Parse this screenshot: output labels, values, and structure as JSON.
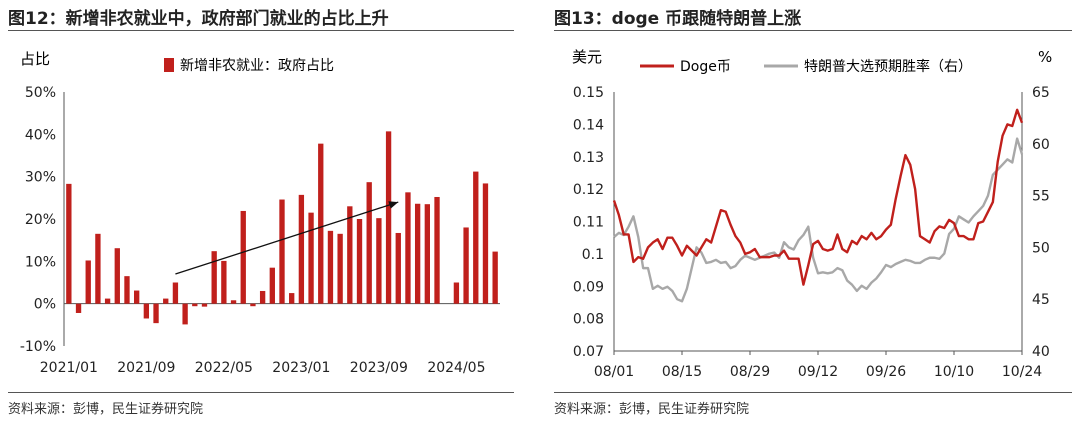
{
  "left": {
    "title": "图12：新增非农就业中，政府部门就业的占比上升",
    "source": "资料来源：彭博，民生证券研究院",
    "chart_data": {
      "type": "bar",
      "ylabel": "占比",
      "legend": "新增非农就业：政府占比",
      "ylim": [
        -10,
        50
      ],
      "yticks": [
        "50%",
        "40%",
        "30%",
        "20%",
        "10%",
        "0%",
        "-10%"
      ],
      "ytick_values": [
        50,
        40,
        30,
        20,
        10,
        0,
        -10
      ],
      "xticks": [
        "2021/01",
        "2021/09",
        "2022/05",
        "2023/01",
        "2023/09",
        "2024/05"
      ],
      "xtick_index": [
        0,
        8,
        16,
        24,
        32,
        40
      ],
      "colors": {
        "bar": "#C0201C",
        "axis": "#555555"
      },
      "values": [
        28.3,
        -2.2,
        10.2,
        16.5,
        1.2,
        13.1,
        6.5,
        3.1,
        -3.5,
        -4.6,
        1.2,
        5.0,
        -4.9,
        -0.6,
        -0.7,
        12.4,
        10.1,
        0.8,
        21.9,
        -0.6,
        3.0,
        8.5,
        24.6,
        2.5,
        25.7,
        21.5,
        37.8,
        17.2,
        16.5,
        23.0,
        20.0,
        28.7,
        20.2,
        40.7,
        16.7,
        26.3,
        23.6,
        23.5,
        25.2,
        null,
        5.0,
        18.0,
        31.2,
        28.4,
        12.3
      ],
      "trend_arrow": {
        "from": [
          11,
          7
        ],
        "to": [
          34,
          24
        ]
      }
    }
  },
  "right": {
    "title": "图13：doge 币跟随特朗普上涨",
    "source": "资料来源：彭博，民生证券研究院",
    "chart_data": {
      "type": "line",
      "ylabel_left": "美元",
      "ylabel_right": "%",
      "ylim_left": [
        0.07,
        0.15
      ],
      "ylim_right": [
        40,
        65
      ],
      "yticks_left": [
        "0.15",
        "0.14",
        "0.13",
        "0.12",
        "0.11",
        "0.1",
        "0.09",
        "0.08",
        "0.07"
      ],
      "ytick_values_left": [
        0.15,
        0.14,
        0.13,
        0.12,
        0.11,
        0.1,
        0.09,
        0.08,
        0.07
      ],
      "yticks_right": [
        "65",
        "60",
        "55",
        "50",
        "45",
        "40"
      ],
      "ytick_values_right": [
        65,
        60,
        55,
        50,
        45,
        40
      ],
      "xticks": [
        "08/01",
        "08/15",
        "08/29",
        "09/12",
        "09/26",
        "10/10",
        "10/24"
      ],
      "xtick_days": [
        0,
        14,
        28,
        42,
        56,
        70,
        84
      ],
      "series": [
        {
          "name": "Doge币",
          "color": "#C0201C",
          "x": [
            0,
            1,
            2,
            3,
            4,
            5,
            6,
            7,
            8,
            9,
            10,
            11,
            12,
            13,
            14,
            15,
            16,
            17,
            18,
            19,
            20,
            21,
            22,
            23,
            24,
            25,
            26,
            27,
            28,
            29,
            30,
            31,
            32,
            33,
            34,
            35,
            36,
            37,
            38,
            39,
            40,
            41,
            42,
            43,
            44,
            45,
            46,
            47,
            48,
            49,
            50,
            51,
            52,
            53,
            54,
            55,
            56,
            57,
            58,
            59,
            60,
            61,
            62,
            63,
            64,
            65,
            66,
            67,
            68,
            69,
            70,
            71,
            72,
            73,
            74,
            75,
            76,
            77,
            78,
            79,
            80,
            81,
            82,
            83,
            84
          ],
          "values": [
            0.1165,
            0.112,
            0.106,
            0.106,
            0.0975,
            0.099,
            0.0985,
            0.102,
            0.1035,
            0.1045,
            0.1015,
            0.105,
            0.105,
            0.1025,
            0.0995,
            0.1025,
            0.101,
            0.0995,
            0.102,
            0.1045,
            0.1035,
            0.1085,
            0.1135,
            0.113,
            0.109,
            0.1055,
            0.1035,
            0.1,
            0.1005,
            0.1015,
            0.099,
            0.099,
            0.099,
            0.0995,
            0.0995,
            0.101,
            0.0985,
            0.0985,
            0.0985,
            0.0905,
            0.0965,
            0.103,
            0.104,
            0.1015,
            0.101,
            0.1015,
            0.106,
            0.1015,
            0.1005,
            0.104,
            0.103,
            0.1055,
            0.1045,
            0.1065,
            0.1045,
            0.1055,
            0.1075,
            0.109,
            0.117,
            0.124,
            0.1305,
            0.1275,
            0.12,
            0.1055,
            0.1045,
            0.1035,
            0.107,
            0.1085,
            0.108,
            0.1105,
            0.1095,
            0.1055,
            0.1055,
            0.1045,
            0.1045,
            0.1095,
            0.11,
            0.113,
            0.116,
            0.1285,
            0.1365,
            0.14,
            0.1395,
            0.1445,
            0.1405
          ]
        },
        {
          "name": "特朗普大选预期胜率（右）",
          "color": "#A8A8A8",
          "x": [
            0,
            1,
            2,
            3,
            4,
            5,
            6,
            7,
            8,
            9,
            10,
            11,
            12,
            13,
            14,
            15,
            16,
            17,
            18,
            19,
            20,
            21,
            22,
            23,
            24,
            25,
            26,
            27,
            28,
            29,
            30,
            31,
            32,
            33,
            34,
            35,
            36,
            37,
            38,
            39,
            40,
            41,
            42,
            43,
            44,
            45,
            46,
            47,
            48,
            49,
            50,
            51,
            52,
            53,
            54,
            55,
            56,
            57,
            58,
            59,
            60,
            61,
            62,
            63,
            64,
            65,
            66,
            67,
            68,
            69,
            70,
            71,
            72,
            73,
            74,
            75,
            76,
            77,
            78,
            79,
            80,
            81,
            82,
            83,
            84
          ],
          "values": [
            51.0,
            51.4,
            51.2,
            52.0,
            53.0,
            51.0,
            48.0,
            48.0,
            46.0,
            46.3,
            46.0,
            46.2,
            45.8,
            45.0,
            44.8,
            46.0,
            48.0,
            50.0,
            49.5,
            48.5,
            48.6,
            48.8,
            48.5,
            48.6,
            48.0,
            48.2,
            48.8,
            49.2,
            49.0,
            48.8,
            49.0,
            49.2,
            49.4,
            49.5,
            49.0,
            50.5,
            50.0,
            49.8,
            50.7,
            51.2,
            52.0,
            49.0,
            47.5,
            47.6,
            47.5,
            47.6,
            48.0,
            47.8,
            46.8,
            46.4,
            45.8,
            46.3,
            46.0,
            46.6,
            47.0,
            47.6,
            48.3,
            48.1,
            48.4,
            48.6,
            48.8,
            48.7,
            48.5,
            48.5,
            48.8,
            49.0,
            49.0,
            48.9,
            49.4,
            51.3,
            51.8,
            53.0,
            52.7,
            52.4,
            53.0,
            53.5,
            54.0,
            55.0,
            57.0,
            57.5,
            58.0,
            58.5,
            58.2,
            60.5,
            59.0
          ]
        }
      ]
    }
  }
}
